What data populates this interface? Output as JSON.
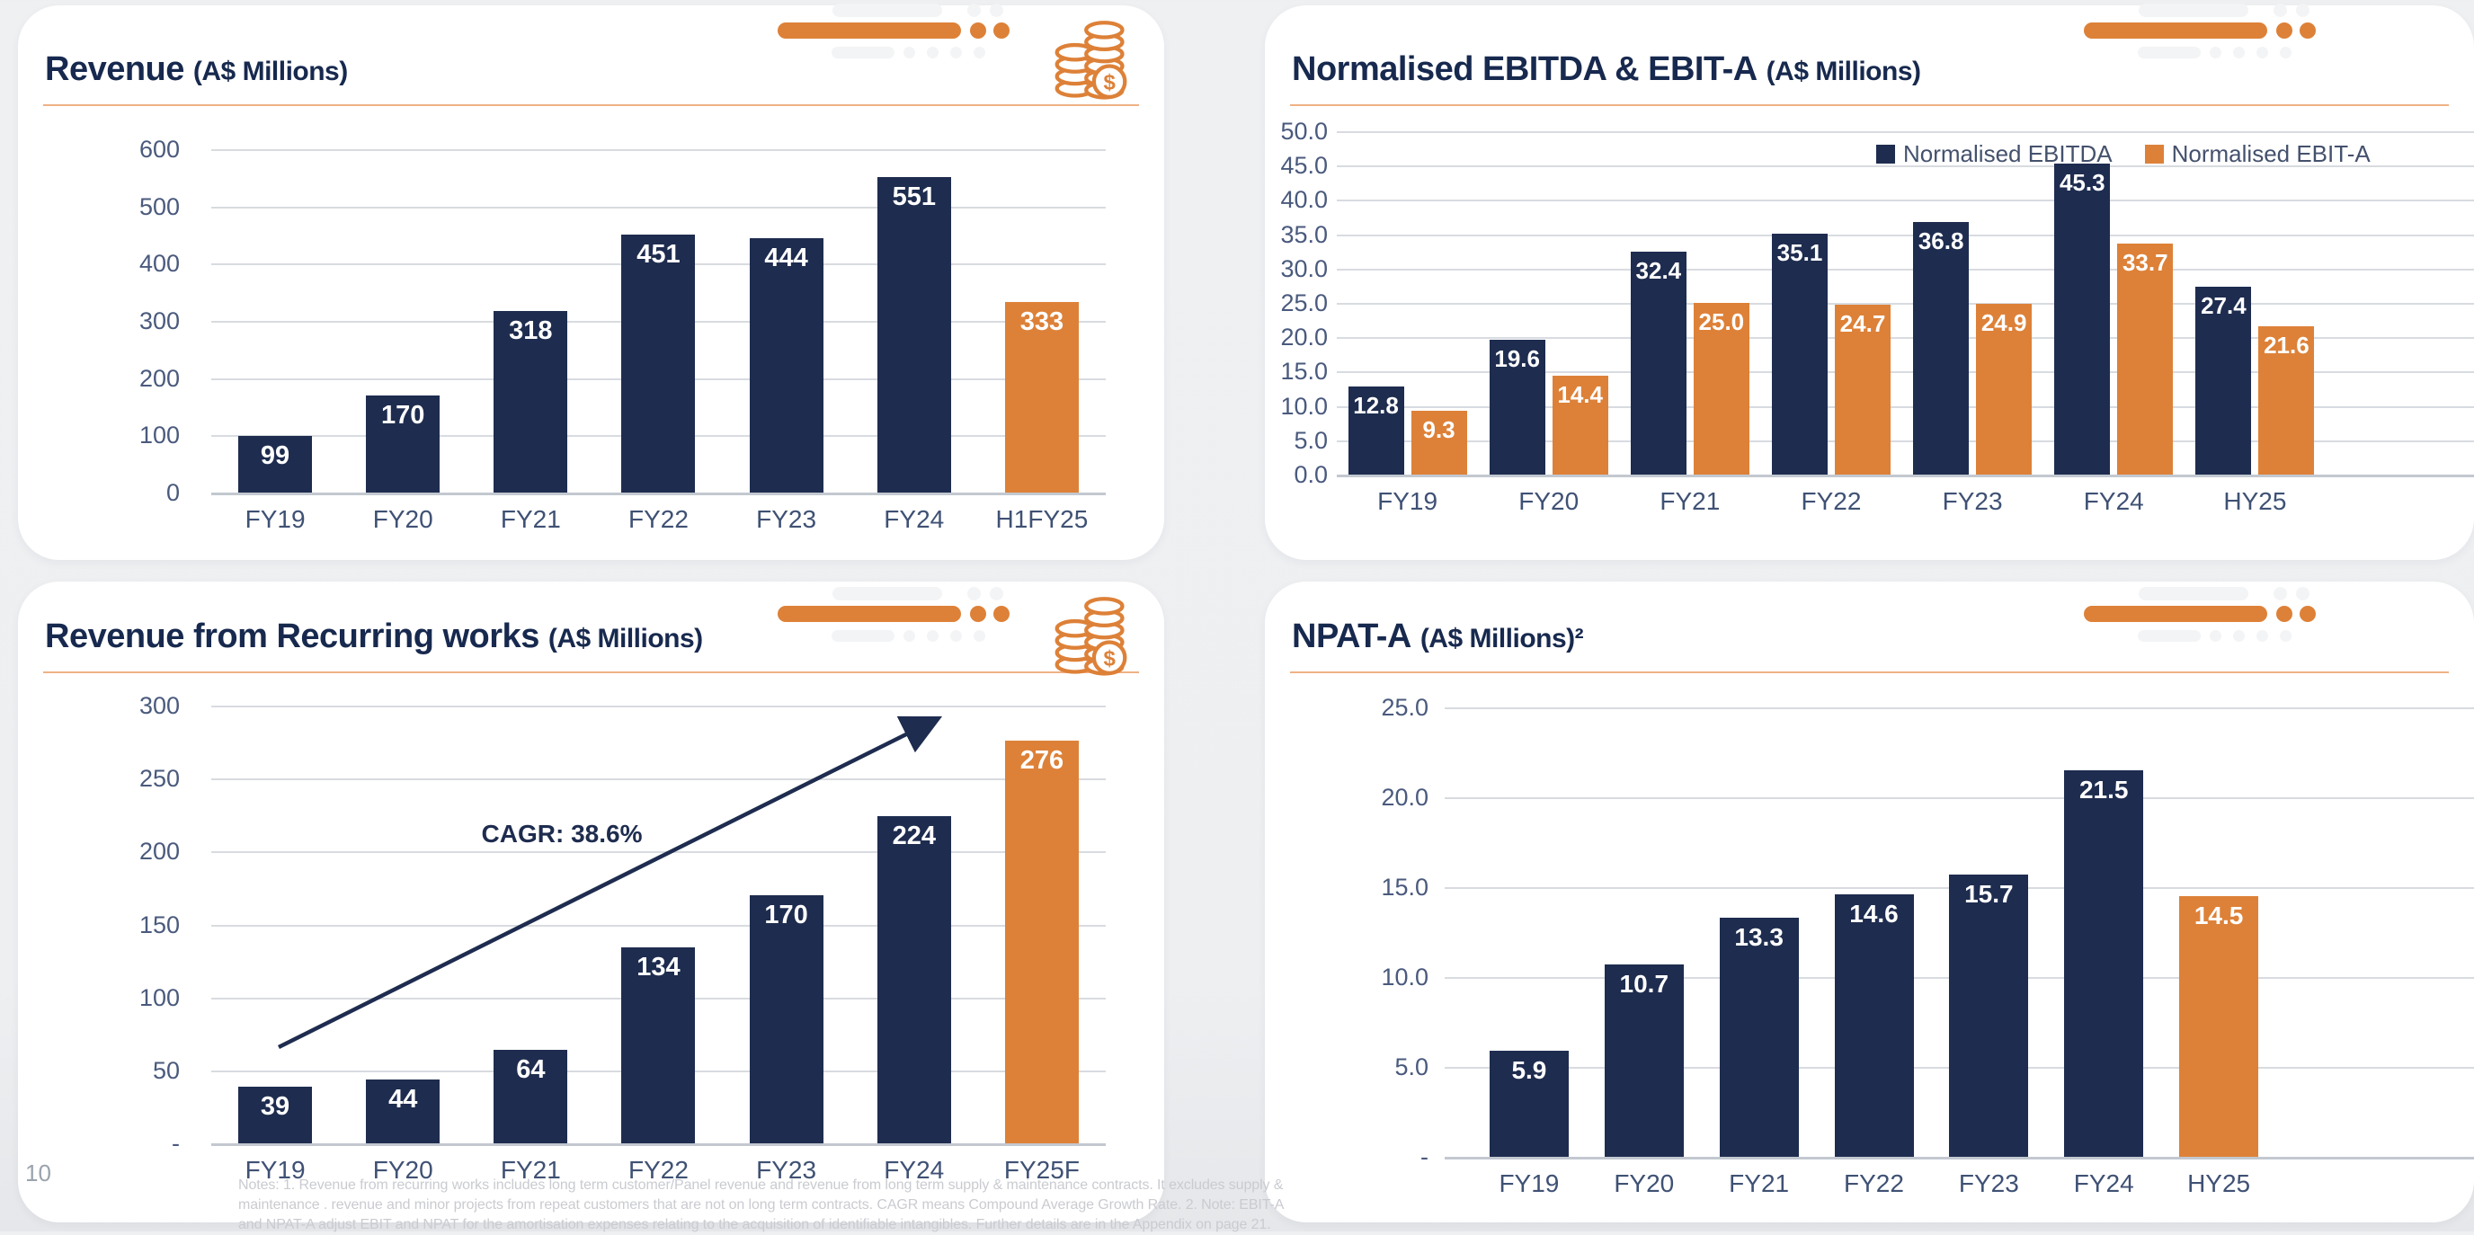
{
  "page": {
    "number": "10",
    "notes": "Notes: 1. Revenue from recurring works includes long term customer/Panel revenue and revenue from long term supply & maintenance contracts. It excludes supply & maintenance . revenue and minor projects from repeat customers that are not on long term contracts. CAGR means Compound Average Growth Rate. 2. Note: EBIT-A and NPAT-A adjust EBIT and NPAT for the amortisation expenses relating to the acquisition of identifiable intangibles. Further details are in the Appendix on page 21."
  },
  "colors": {
    "navy": "#1e2c4f",
    "orange": "#dd8138",
    "title": "#17294e",
    "gridline": "#d8dbe0",
    "axis_text": "#4a5a7d"
  },
  "cards": [
    {
      "title": "Revenue",
      "subtitle": "(A$ Millions)"
    },
    {
      "title": "Normalised EBITDA & EBIT-A",
      "subtitle": "(A$ Millions)"
    },
    {
      "title": "Revenue from Recurring works",
      "subtitle": "(A$ Millions)"
    },
    {
      "title": "NPAT-A",
      "subtitle": "(A$ Millions)²"
    }
  ],
  "chart_data": [
    {
      "id": "revenue",
      "type": "bar",
      "title": "Revenue (A$ Millions)",
      "categories": [
        "FY19",
        "FY20",
        "FY21",
        "FY22",
        "FY23",
        "FY24",
        "H1FY25"
      ],
      "values": [
        99,
        170,
        318,
        451,
        444,
        551,
        333
      ],
      "value_labels": [
        "99",
        "170",
        "318",
        "451",
        "444",
        "551",
        "333"
      ],
      "highlight_index": 6,
      "ylim": [
        0,
        600
      ],
      "yticks": [
        "600",
        "500",
        "400",
        "300",
        "200",
        "100",
        "0"
      ],
      "grid": true,
      "legend_position": "none"
    },
    {
      "id": "ebitda",
      "type": "bar",
      "title": "Normalised EBITDA & EBIT-A (A$ Millions)",
      "categories": [
        "FY19",
        "FY20",
        "FY21",
        "FY22",
        "FY23",
        "FY24",
        "HY25"
      ],
      "series": [
        {
          "name": "Normalised EBITDA",
          "color": "navy",
          "values": [
            12.8,
            19.6,
            32.4,
            35.1,
            36.8,
            45.3,
            27.4
          ],
          "value_labels": [
            "12.8",
            "19.6",
            "32.4",
            "35.1",
            "36.8",
            "45.3",
            "27.4"
          ]
        },
        {
          "name": "Normalised EBIT-A",
          "color": "orange",
          "values": [
            9.3,
            14.4,
            25.0,
            24.7,
            24.9,
            33.7,
            21.6
          ],
          "value_labels": [
            "9.3",
            "14.4",
            "25.0",
            "24.7",
            "24.9",
            "33.7",
            "21.6"
          ]
        }
      ],
      "ylim": [
        0,
        50
      ],
      "yticks": [
        "50.0",
        "45.0",
        "40.0",
        "35.0",
        "30.0",
        "25.0",
        "20.0",
        "15.0",
        "10.0",
        "5.0",
        "0.0"
      ],
      "grid": true,
      "legend_position": "top-right"
    },
    {
      "id": "recurring",
      "type": "bar",
      "title": "Revenue from Recurring works (A$ Millions)",
      "categories": [
        "FY19",
        "FY20",
        "FY21",
        "FY22",
        "FY23",
        "FY24",
        "FY25F"
      ],
      "values": [
        39,
        44,
        64,
        134,
        170,
        224,
        276
      ],
      "value_labels": [
        "39",
        "44",
        "64",
        "134",
        "170",
        "224",
        "276"
      ],
      "highlight_index": 6,
      "ylim": [
        0,
        300
      ],
      "yticks": [
        "300",
        "250",
        "200",
        "150",
        "100",
        "50",
        "-"
      ],
      "grid": true,
      "legend_position": "none",
      "annotation": {
        "type": "arrow",
        "text": "CAGR: 38.6%"
      }
    },
    {
      "id": "npat",
      "type": "bar",
      "title": "NPAT-A (A$ Millions)²",
      "categories": [
        "FY19",
        "FY20",
        "FY21",
        "FY22",
        "FY23",
        "FY24",
        "HY25"
      ],
      "values": [
        5.9,
        10.7,
        13.3,
        14.6,
        15.7,
        21.5,
        14.5
      ],
      "value_labels": [
        "5.9",
        "10.7",
        "13.3",
        "14.6",
        "15.7",
        "21.5",
        "14.5"
      ],
      "highlight_index": 6,
      "ylim": [
        0,
        25
      ],
      "yticks": [
        "25.0",
        "20.0",
        "15.0",
        "10.0",
        "5.0",
        "-"
      ],
      "grid": true,
      "legend_position": "none"
    }
  ]
}
